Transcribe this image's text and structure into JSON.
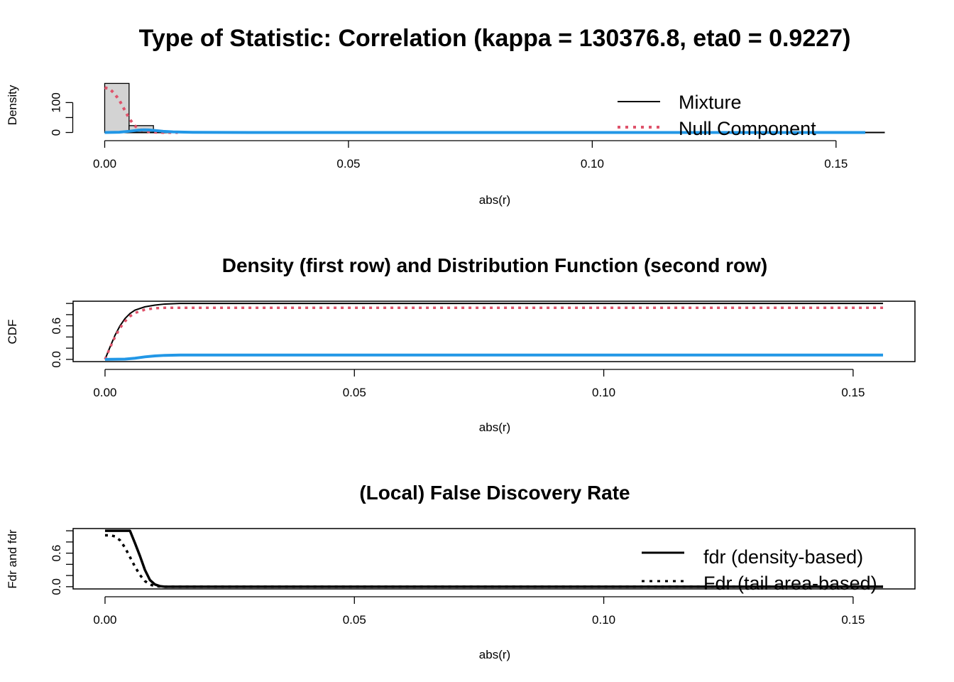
{
  "chart_data": [
    {
      "type": "histogram",
      "title": "Type of Statistic: Correlation (kappa = 130376.8, eta0 = 0.9227)",
      "xlabel": "abs(r)",
      "ylabel": "Density",
      "xlim": [
        0,
        0.16
      ],
      "ylim": [
        0,
        165
      ],
      "x_ticks": [
        "0.00",
        "0.05",
        "0.10",
        "0.15"
      ],
      "y_ticks": [
        "0",
        "100"
      ],
      "bins": [
        {
          "x0": 0.0,
          "x1": 0.005,
          "density": 164
        },
        {
          "x0": 0.005,
          "x1": 0.01,
          "density": 23
        },
        {
          "x0": 0.01,
          "x1": 0.015,
          "density": 1.5
        },
        {
          "x0": 0.015,
          "x1": 0.02,
          "density": 0.5
        },
        {
          "x0": 0.02,
          "x1": 0.025,
          "density": 0.2
        }
      ],
      "series": [
        {
          "name": "Mixture",
          "color": "#000000",
          "style": "solid",
          "x": [
            0.0,
            0.005,
            0.01,
            0.02,
            0.05,
            0.1,
            0.15,
            0.16
          ],
          "y": [
            0,
            0,
            0,
            0,
            0,
            0,
            0,
            0
          ]
        },
        {
          "name": "Null Component",
          "color": "#DF536B",
          "style": "dotted",
          "x": [
            0.0,
            0.001,
            0.002,
            0.003,
            0.004,
            0.005,
            0.006,
            0.007,
            0.008,
            0.01,
            0.012,
            0.015
          ],
          "y": [
            150,
            146,
            130,
            108,
            78,
            48,
            25,
            12,
            5,
            1,
            0,
            0
          ]
        },
        {
          "color": "#2297E6",
          "style": "solid",
          "x": [
            0.0,
            0.003,
            0.005,
            0.007,
            0.008,
            0.009,
            0.01,
            0.012,
            0.014,
            0.018,
            0.03,
            0.156
          ],
          "y": [
            0,
            1,
            4,
            8,
            9,
            8.5,
            7,
            4,
            2,
            0.7,
            0.1,
            0
          ]
        }
      ],
      "legend": {
        "position": "top-right",
        "entries": [
          "Mixture",
          "Null Component"
        ]
      }
    },
    {
      "type": "line",
      "title": "Density (first row) and Distribution Function (second row)",
      "xlabel": "abs(r)",
      "ylabel": "CDF",
      "xlim": [
        -0.0064,
        0.1624
      ],
      "ylim": [
        -0.04,
        1.04
      ],
      "x_ticks": [
        "0.00",
        "0.05",
        "0.10",
        "0.15"
      ],
      "y_ticks": [
        "0.0",
        "0.6"
      ],
      "grid": false,
      "series": [
        {
          "color": "#000000",
          "style": "solid",
          "x": [
            0.0,
            0.001,
            0.002,
            0.003,
            0.004,
            0.005,
            0.006,
            0.008,
            0.01,
            0.012,
            0.015,
            0.156
          ],
          "y": [
            0,
            0.22,
            0.43,
            0.6,
            0.73,
            0.82,
            0.88,
            0.94,
            0.97,
            0.99,
            1.0,
            1.0
          ]
        },
        {
          "color": "#DF536B",
          "style": "dotted",
          "x": [
            0.0,
            0.001,
            0.002,
            0.003,
            0.004,
            0.005,
            0.006,
            0.008,
            0.01,
            0.012,
            0.156
          ],
          "y": [
            0,
            0.21,
            0.4,
            0.56,
            0.68,
            0.77,
            0.83,
            0.89,
            0.915,
            0.9227,
            0.9227
          ]
        },
        {
          "color": "#2297E6",
          "style": "solid",
          "x": [
            0.0,
            0.004,
            0.006,
            0.008,
            0.01,
            0.012,
            0.015,
            0.156
          ],
          "y": [
            0,
            0.005,
            0.02,
            0.045,
            0.062,
            0.072,
            0.0773,
            0.0773
          ]
        }
      ]
    },
    {
      "type": "line",
      "title": "(Local) False Discovery Rate",
      "xlabel": "abs(r)",
      "ylabel": "Fdr and fdr",
      "xlim": [
        -0.0064,
        0.1624
      ],
      "ylim": [
        -0.04,
        1.04
      ],
      "x_ticks": [
        "0.00",
        "0.05",
        "0.10",
        "0.15"
      ],
      "y_ticks": [
        "0.0",
        "0.6"
      ],
      "series": [
        {
          "name": "fdr (density-based)",
          "color": "#000000",
          "style": "solid",
          "x": [
            0.0,
            0.005,
            0.006,
            0.007,
            0.008,
            0.009,
            0.01,
            0.011,
            0.012,
            0.156
          ],
          "y": [
            1.0,
            1.0,
            0.78,
            0.55,
            0.3,
            0.12,
            0.04,
            0.01,
            0.0,
            0.0
          ]
        },
        {
          "name": "Fdr (tail area-based)",
          "color": "#000000",
          "style": "dotted",
          "x": [
            0.0,
            0.001,
            0.002,
            0.003,
            0.004,
            0.005,
            0.006,
            0.007,
            0.008,
            0.009,
            0.01,
            0.012,
            0.156
          ],
          "y": [
            0.92,
            0.92,
            0.9,
            0.83,
            0.7,
            0.53,
            0.36,
            0.21,
            0.1,
            0.04,
            0.01,
            0.0,
            0.0
          ]
        }
      ],
      "legend": {
        "position": "top-right",
        "entries": [
          "fdr (density-based)",
          "Fdr (tail area-based)"
        ]
      }
    }
  ]
}
